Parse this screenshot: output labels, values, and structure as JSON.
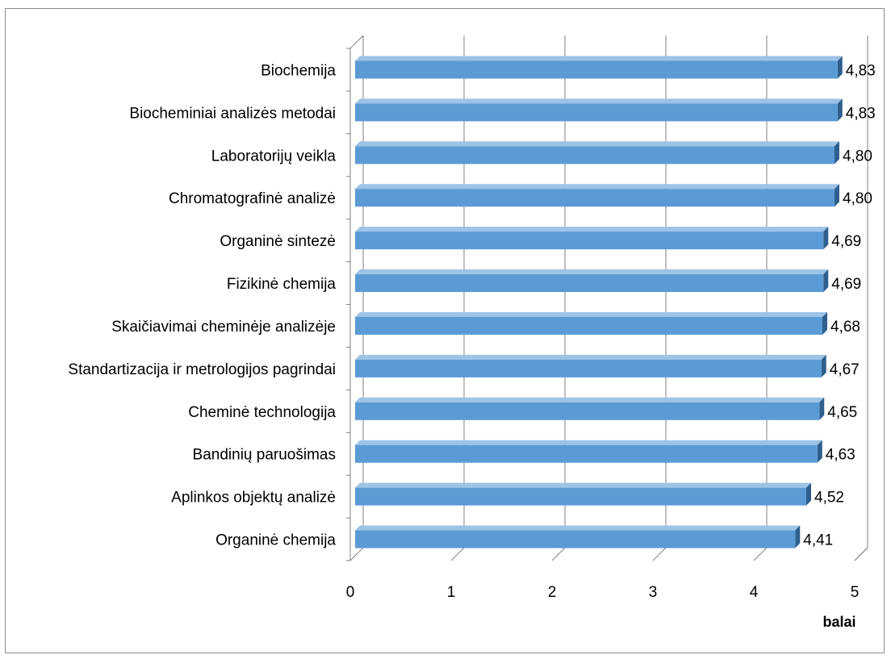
{
  "chart_data": {
    "type": "bar",
    "orientation": "horizontal",
    "categories": [
      "Biochemija",
      "Biocheminiai analizės metodai",
      "Laboratorijų veikla ",
      "Chromatografinė analizė",
      "Organinė sintezė",
      "Fizikinė chemija ",
      "Skaičiavimai cheminėje analizėje",
      "Standartizacija ir metrologijos pagrindai",
      "Cheminė technologija",
      "Bandinių paruošimas",
      "Aplinkos objektų analizė",
      "Organinė chemija"
    ],
    "values": [
      4.83,
      4.83,
      4.8,
      4.8,
      4.69,
      4.69,
      4.68,
      4.67,
      4.65,
      4.63,
      4.52,
      4.41
    ],
    "value_labels": [
      "4,83",
      "4,83",
      "4,80",
      "4,80",
      "4,69",
      "4,69",
      "4,68",
      "4,67",
      "4,65",
      "4,63",
      "4,52",
      "4,41"
    ],
    "xlabel": "balai",
    "ylabel": "",
    "xlim": [
      0,
      5
    ],
    "xticks": [
      "0",
      "1",
      "2",
      "3",
      "4",
      "5"
    ],
    "grid": true,
    "legend": "none",
    "style": "3d",
    "colors": {
      "bar_front": "#5b9bd5",
      "bar_top": "#9dc3e6",
      "bar_side": "#2e5f8e",
      "grid": "#808080"
    }
  }
}
